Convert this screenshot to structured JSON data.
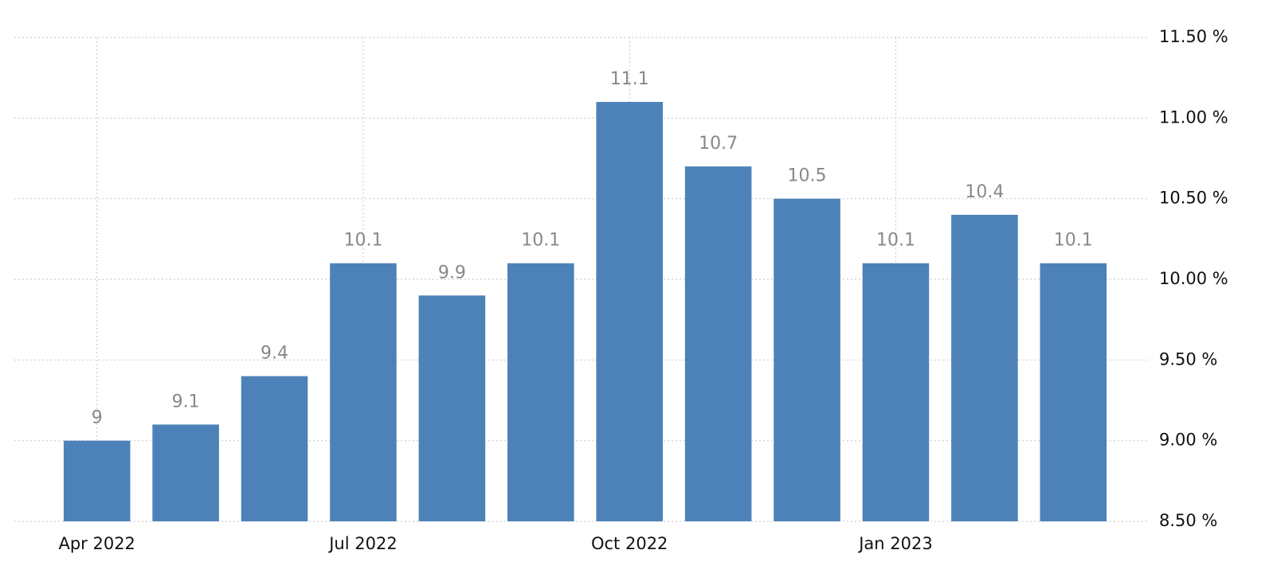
{
  "chart_data": {
    "type": "bar",
    "categories": [
      "Apr 2022",
      null,
      null,
      "Jul 2022",
      null,
      null,
      "Oct 2022",
      null,
      null,
      "Jan 2023",
      null,
      null
    ],
    "values": [
      9,
      9.1,
      9.4,
      10.1,
      9.9,
      10.1,
      11.1,
      10.7,
      10.5,
      10.1,
      10.4,
      10.1
    ],
    "color": "#4d82b8",
    "ylim": [
      8.5,
      11.5
    ],
    "yticks": [
      {
        "value": 8.5,
        "label": "8.50 %"
      },
      {
        "value": 9,
        "label": "9.00 %"
      },
      {
        "value": 9.5,
        "label": "9.50 %"
      },
      {
        "value": 10,
        "label": "10.00 %"
      },
      {
        "value": 10.5,
        "label": "10.50 %"
      },
      {
        "value": 11,
        "label": "11.00 %"
      },
      {
        "value": 11.5,
        "label": "11.50 %"
      }
    ],
    "grid": true
  }
}
